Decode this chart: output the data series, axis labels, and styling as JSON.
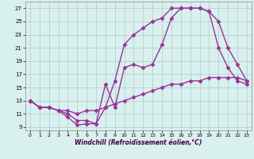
{
  "line_color": "#993399",
  "bg_color": "#d8f0ee",
  "grid_color": "#b0c8c8",
  "marker": "D",
  "markersize": 2.5,
  "linewidth": 1.0,
  "xlabel": "Windchill (Refroidissement éolien,°C)",
  "xlim": [
    -0.5,
    23.5
  ],
  "ylim": [
    8.5,
    28
  ],
  "yticks": [
    9,
    11,
    13,
    15,
    17,
    19,
    21,
    23,
    25,
    27
  ],
  "xticks": [
    0,
    1,
    2,
    3,
    4,
    5,
    6,
    7,
    8,
    9,
    10,
    11,
    12,
    13,
    14,
    15,
    16,
    17,
    18,
    19,
    20,
    21,
    22,
    23
  ],
  "line1_x": [
    0,
    1,
    2,
    3,
    4,
    5,
    6,
    7,
    8,
    9,
    10,
    11,
    12,
    13,
    14,
    15,
    16,
    17,
    18,
    19,
    20,
    21,
    22,
    23
  ],
  "line1_y": [
    13,
    12,
    12,
    11.5,
    10.5,
    9.3,
    9.5,
    9.5,
    15.5,
    12,
    18,
    18.5,
    18,
    18.5,
    21.5,
    25.5,
    27,
    27,
    27,
    26.5,
    21,
    18,
    16,
    15.5
  ],
  "line2_x": [
    0,
    1,
    2,
    3,
    4,
    5,
    6,
    7,
    8,
    9,
    10,
    11,
    12,
    13,
    14,
    15,
    16,
    17,
    18,
    19,
    20,
    21,
    22,
    23
  ],
  "line2_y": [
    13,
    12,
    12,
    11.5,
    11,
    10,
    10,
    9.5,
    12,
    16,
    21.5,
    23,
    24,
    25,
    25.5,
    27,
    27,
    27,
    27,
    26.5,
    25,
    21,
    18.5,
    16
  ],
  "line3_x": [
    0,
    1,
    2,
    3,
    4,
    5,
    6,
    7,
    8,
    9,
    10,
    11,
    12,
    13,
    14,
    15,
    16,
    17,
    18,
    19,
    20,
    21,
    22,
    23
  ],
  "line3_y": [
    13,
    12,
    12,
    11.5,
    11.5,
    11,
    11.5,
    11.5,
    12,
    12.5,
    13,
    13.5,
    14,
    14.5,
    15,
    15.5,
    15.5,
    16,
    16,
    16.5,
    16.5,
    16.5,
    16.5,
    16
  ]
}
